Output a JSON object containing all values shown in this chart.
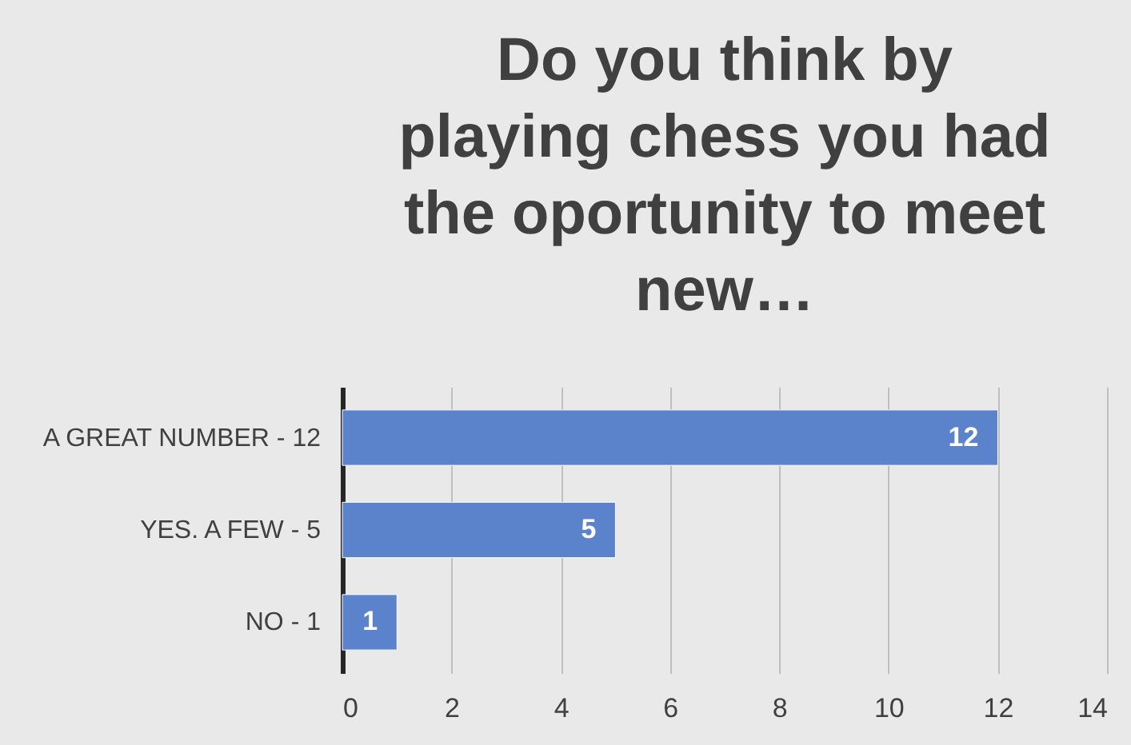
{
  "chart_data": {
    "type": "bar",
    "orientation": "horizontal",
    "title": "Do you think by playing chess you had the oportunity to meet new…",
    "categories": [
      "A GREAT NUMBER  - 12",
      "YES. A FEW   - 5",
      "NO  - 1"
    ],
    "values": [
      12,
      5,
      1
    ],
    "color": "#5b83cb",
    "xlim": [
      0,
      14
    ],
    "xticks": [
      0,
      2,
      4,
      6,
      8,
      10,
      12,
      14
    ],
    "grid": "x",
    "data_labels": true
  }
}
